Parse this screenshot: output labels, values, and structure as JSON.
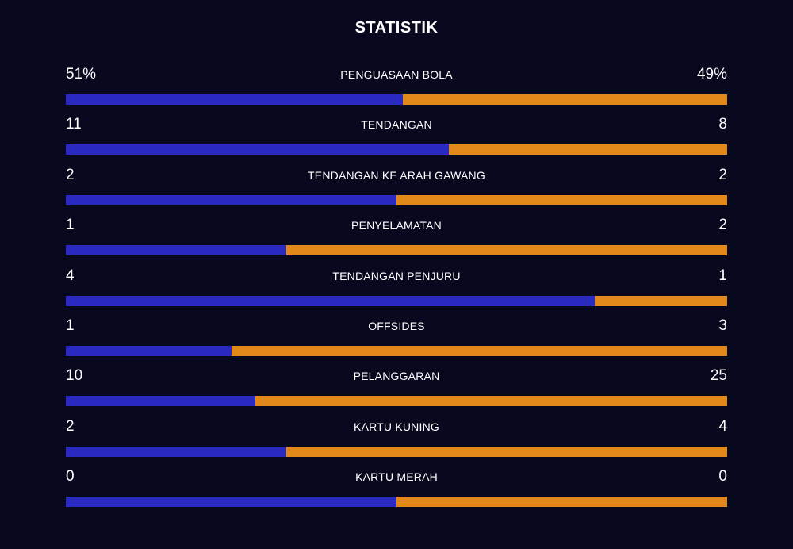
{
  "title": "STATISTIK",
  "colors": {
    "home": "#2a2ac0",
    "away": "#e0891a",
    "background": "#08081f"
  },
  "stats": [
    {
      "label": "PENGUASAAN BOLA",
      "home": "51%",
      "away": "49%",
      "home_share": 0.51
    },
    {
      "label": "TENDANGAN",
      "home": "11",
      "away": "8",
      "home_share": 0.579
    },
    {
      "label": "TENDANGAN KE ARAH GAWANG",
      "home": "2",
      "away": "2",
      "home_share": 0.5
    },
    {
      "label": "PENYELAMATAN",
      "home": "1",
      "away": "2",
      "home_share": 0.333
    },
    {
      "label": "TENDANGAN PENJURU",
      "home": "4",
      "away": "1",
      "home_share": 0.8
    },
    {
      "label": "OFFSIDES",
      "home": "1",
      "away": "3",
      "home_share": 0.25
    },
    {
      "label": "PELANGGARAN",
      "home": "10",
      "away": "25",
      "home_share": 0.286
    },
    {
      "label": "KARTU KUNING",
      "home": "2",
      "away": "4",
      "home_share": 0.333
    },
    {
      "label": "KARTU MERAH",
      "home": "0",
      "away": "0",
      "home_share": 0.5
    }
  ]
}
